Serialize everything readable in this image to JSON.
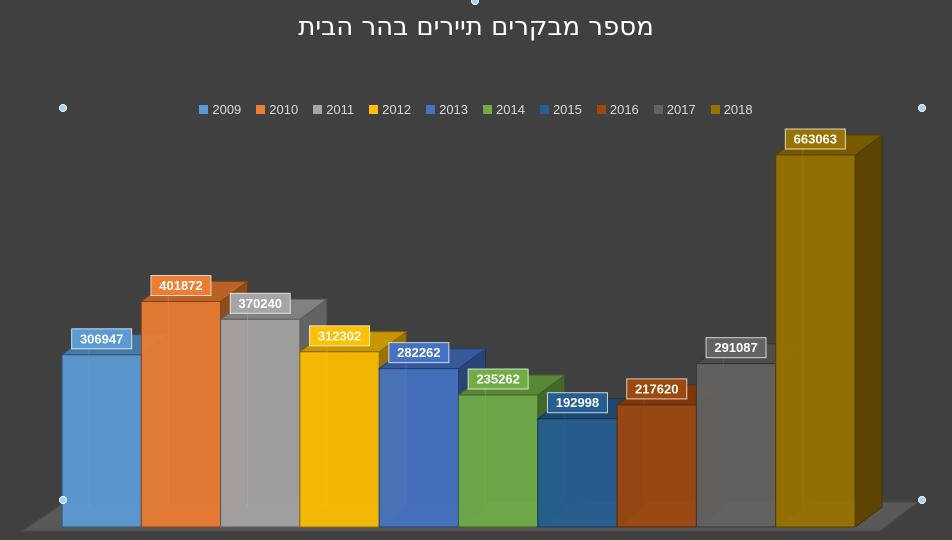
{
  "chart_data": {
    "type": "bar",
    "title": "מספר מבקרים תיירים בהר הבית",
    "categories": [
      "2009",
      "2010",
      "2011",
      "2012",
      "2013",
      "2014",
      "2015",
      "2016",
      "2017",
      "2018"
    ],
    "values": [
      306947,
      401872,
      370240,
      312302,
      282262,
      235262,
      192998,
      217620,
      291087,
      663063
    ],
    "colors": [
      "#5b9bd5",
      "#ed7d31",
      "#a5a5a5",
      "#ffc000",
      "#4472c4",
      "#70ad47",
      "#255e91",
      "#9e480e",
      "#636363",
      "#997300"
    ],
    "legend_position": "top",
    "ylim": [
      0,
      663063
    ],
    "grid": false,
    "style": "3d-column"
  }
}
